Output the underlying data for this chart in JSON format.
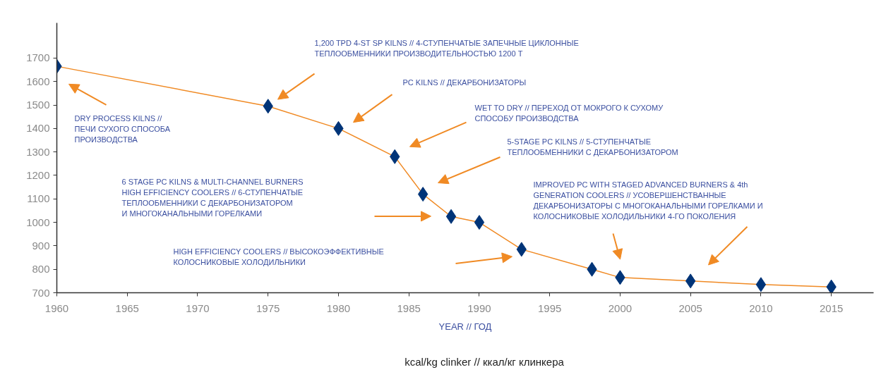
{
  "chart_data": {
    "type": "line",
    "xlabel": "YEAR // ГОД",
    "x": [
      1960,
      1975,
      1980,
      1984,
      1986,
      1988,
      1990,
      1993,
      1998,
      2000,
      2005,
      2010,
      2015
    ],
    "series": [
      {
        "name": "kcal/kg clinker // ккал/кг клинкера",
        "color": "#003478",
        "values": [
          1665,
          1495,
          1400,
          1280,
          1120,
          1025,
          1000,
          885,
          800,
          765,
          750,
          735,
          725
        ]
      }
    ],
    "xlim": [
      1960,
      2018
    ],
    "ylim": [
      700,
      1850
    ],
    "xticks": [
      1960,
      1965,
      1970,
      1975,
      1980,
      1985,
      1990,
      1995,
      2000,
      2005,
      2010,
      2015
    ],
    "yticks": [
      700,
      800,
      900,
      1000,
      1100,
      1200,
      1300,
      1400,
      1500,
      1600,
      1700
    ],
    "marker": "diamond",
    "line_style": "solid",
    "grid": false,
    "legend": "bottom",
    "annotations": [
      "DRY PROCESS KILNS //\nПЕЧИ СУХОГО СПОСОБА\nПРОИЗВОДСТВА",
      "1,200 TPD 4-ST SP KILNS // 4-СТУПЕНЧАТЫЕ ЗАПЕЧНЫЕ ЦИКЛОННЫЕ\nТЕПЛООБМЕННИКИ ПРОИЗВОДИТЕЛЬНОСТЬЮ 1200 Т",
      "PC KILNS // ДЕКАРБОНИЗАТОРЫ",
      "WET TO DRY // ПЕРЕХОД ОТ МОКРОГО К СУХОМУ\nСПОСОБУ ПРОИЗВОДСТВА",
      "5-STAGE PC KILNS // 5-СТУПЕНЧАТЫЕ\nТЕПЛООБМЕННИКИ С ДЕКАРБОНИЗАТОРОМ",
      "6 STAGE PC KILNS & MULTI-CHANNEL BURNERS\nHIGH EFFICIENCY COOLERS // 6-СТУПЕНЧАТЫЕ\nТЕПЛООБМЕННИКИ С ДЕКАРБОНИЗАТОРОМ\nИ МНОГОКАНАЛЬНЫМИ ГОРЕЛКАМИ",
      "HIGH EFFICIENCY COOLERS // ВЫСОКОЭФФЕКТИВНЫЕ\nКОЛОСНИКОВЫЕ ХОЛОДИЛЬНИКИ",
      "IMPROVED PC WITH STAGED ADVANCED BURNERS & 4th\nGENERATION COOLERS // УСОВЕРШЕНСТВАННЫЕ\nДЕКАРБОНИЗАТОРЫ С МНОГОКАНАЛЬНЫМИ ГОРЕЛКАМИ И\nКОЛОСНИКОВЫЕ ХОЛОДИЛЬНИКИ 4-ГО ПОКОЛЕНИЯ"
    ]
  }
}
